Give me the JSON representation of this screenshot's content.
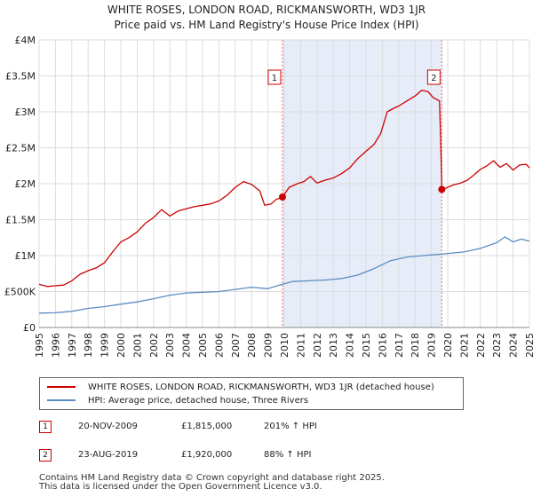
{
  "header": {
    "title_line1": "WHITE ROSES, LONDON ROAD, RICKMANSWORTH, WD3 1JR",
    "title_line2": "Price paid vs. HM Land Registry's House Price Index (HPI)"
  },
  "chart_data": {
    "type": "line",
    "x_range": [
      1995,
      2025
    ],
    "ylim": [
      0,
      4000000
    ],
    "y_ticks": [
      {
        "value": 0,
        "label": "£0"
      },
      {
        "value": 500000,
        "label": "£500K"
      },
      {
        "value": 1000000,
        "label": "£1M"
      },
      {
        "value": 1500000,
        "label": "£1.5M"
      },
      {
        "value": 2000000,
        "label": "£2M"
      },
      {
        "value": 2500000,
        "label": "£2.5M"
      },
      {
        "value": 3000000,
        "label": "£3M"
      },
      {
        "value": 3500000,
        "label": "£3.5M"
      },
      {
        "value": 4000000,
        "label": "£4M"
      }
    ],
    "x_ticks": [
      "1995",
      "1996",
      "1997",
      "1998",
      "1999",
      "2000",
      "2001",
      "2002",
      "2003",
      "2004",
      "2005",
      "2006",
      "2007",
      "2008",
      "2009",
      "2010",
      "2011",
      "2012",
      "2013",
      "2014",
      "2015",
      "2016",
      "2017",
      "2018",
      "2019",
      "2020",
      "2021",
      "2022",
      "2023",
      "2024",
      "2025"
    ],
    "grid": true,
    "shaded_period": {
      "from": 2009.89,
      "to": 2019.64
    },
    "series": [
      {
        "name": "WHITE ROSES, LONDON ROAD, RICKMANSWORTH, WD3 1JR (detached house)",
        "color": "#cc0000",
        "x": [
          1995.0,
          1995.5,
          1996.0,
          1996.5,
          1997.0,
          1997.5,
          1998.0,
          1998.5,
          1999.0,
          1999.5,
          2000.0,
          2000.5,
          2001.0,
          2001.5,
          2002.0,
          2002.5,
          2003.0,
          2003.5,
          2004.0,
          2004.5,
          2005.0,
          2005.5,
          2006.0,
          2006.5,
          2007.0,
          2007.5,
          2008.0,
          2008.5,
          2008.8,
          2009.2,
          2009.5,
          2009.89,
          2010.3,
          2010.8,
          2011.2,
          2011.6,
          2012.0,
          2012.5,
          2013.0,
          2013.5,
          2014.0,
          2014.5,
          2015.0,
          2015.5,
          2015.9,
          2016.3,
          2016.7,
          2017.0,
          2017.5,
          2018.0,
          2018.4,
          2018.8,
          2019.1,
          2019.5,
          2019.58,
          2019.64,
          2019.9,
          2020.3,
          2020.8,
          2021.2,
          2021.6,
          2022.0,
          2022.4,
          2022.8,
          2023.2,
          2023.6,
          2024.0,
          2024.4,
          2024.8,
          2025.0
        ],
        "values": [
          600000,
          570000,
          580000,
          590000,
          650000,
          740000,
          790000,
          830000,
          900000,
          1050000,
          1190000,
          1250000,
          1330000,
          1450000,
          1530000,
          1640000,
          1550000,
          1620000,
          1650000,
          1680000,
          1700000,
          1720000,
          1760000,
          1840000,
          1950000,
          2030000,
          1990000,
          1900000,
          1700000,
          1720000,
          1780000,
          1815000,
          1950000,
          2000000,
          2030000,
          2100000,
          2010000,
          2050000,
          2080000,
          2140000,
          2220000,
          2350000,
          2450000,
          2550000,
          2700000,
          3000000,
          3050000,
          3080000,
          3150000,
          3220000,
          3300000,
          3280000,
          3200000,
          3150000,
          2500000,
          1920000,
          1940000,
          1980000,
          2010000,
          2050000,
          2120000,
          2200000,
          2250000,
          2320000,
          2230000,
          2280000,
          2190000,
          2260000,
          2270000,
          2220000
        ]
      },
      {
        "name": "HPI: Average price, detached house, Three Rivers",
        "color": "#5b8cc2",
        "x": [
          1995.0,
          1996.0,
          1997.0,
          1998.0,
          1999.0,
          2000.0,
          2001.0,
          2002.0,
          2003.0,
          2004.0,
          2005.0,
          2006.0,
          2007.0,
          2008.0,
          2009.0,
          2009.89,
          2010.5,
          2011.5,
          2012.5,
          2013.5,
          2014.5,
          2015.5,
          2016.5,
          2017.5,
          2018.5,
          2019.0,
          2019.64,
          2020.0,
          2021.0,
          2022.0,
          2023.0,
          2023.5,
          2024.0,
          2024.5,
          2025.0
        ],
        "values": [
          200000,
          205000,
          225000,
          265000,
          290000,
          325000,
          355000,
          400000,
          450000,
          480000,
          490000,
          500000,
          530000,
          560000,
          540000,
          602000,
          640000,
          650000,
          660000,
          680000,
          730000,
          820000,
          930000,
          980000,
          1000000,
          1010000,
          1020000,
          1030000,
          1050000,
          1100000,
          1180000,
          1260000,
          1190000,
          1230000,
          1200000
        ]
      }
    ],
    "markers": [
      {
        "label": "1",
        "x": 2009.89,
        "value": 1815000
      },
      {
        "label": "2",
        "x": 2019.64,
        "value": 1920000
      }
    ]
  },
  "legend": {
    "items": [
      {
        "label": "WHITE ROSES, LONDON ROAD, RICKMANSWORTH, WD3 1JR (detached house)",
        "color": "#cc0000"
      },
      {
        "label": "HPI: Average price, detached house, Three Rivers",
        "color": "#5b8cc2"
      }
    ]
  },
  "transactions": [
    {
      "id": "1",
      "date": "20-NOV-2009",
      "price": "£1,815,000",
      "hpi": "201% ↑ HPI"
    },
    {
      "id": "2",
      "date": "23-AUG-2019",
      "price": "£1,920,000",
      "hpi": "88% ↑ HPI"
    }
  ],
  "footer": {
    "line1": "Contains HM Land Registry data © Crown copyright and database right 2025.",
    "line2": "This data is licensed under the Open Government Licence v3.0."
  }
}
